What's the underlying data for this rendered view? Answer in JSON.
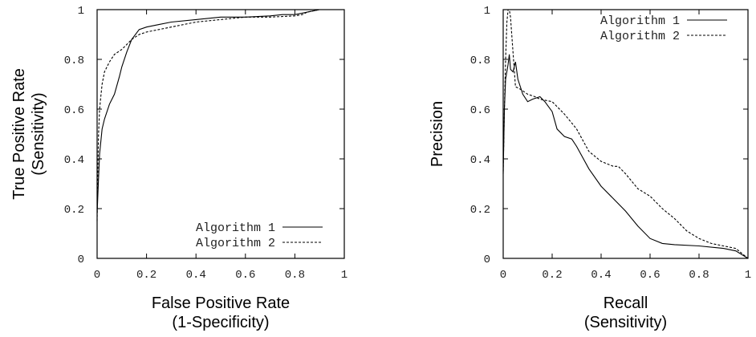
{
  "chart_data": [
    {
      "type": "line",
      "xlabel": [
        "False Positive Rate",
        "(1-Specificity)"
      ],
      "ylabel": [
        "True Positive Rate",
        "(Sensitivity)"
      ],
      "xlim": [
        0,
        1
      ],
      "ylim": [
        0,
        1
      ],
      "xticks": [
        "0",
        "0.2",
        "0.4",
        "0.6",
        "0.8",
        "1"
      ],
      "yticks": [
        "0",
        "0.2",
        "0.4",
        "0.6",
        "0.8",
        "1"
      ],
      "grid": false,
      "legend_position": "bottom-right",
      "series": [
        {
          "name": "Algorithm 1",
          "style": "solid",
          "x": [
            0,
            0.005,
            0.01,
            0.02,
            0.03,
            0.05,
            0.07,
            0.09,
            0.1,
            0.12,
            0.14,
            0.17,
            0.2,
            0.25,
            0.3,
            0.4,
            0.5,
            0.6,
            0.7,
            0.75,
            0.8,
            0.85,
            0.9,
            1.0
          ],
          "y": [
            0.18,
            0.3,
            0.42,
            0.52,
            0.56,
            0.62,
            0.66,
            0.73,
            0.77,
            0.83,
            0.88,
            0.92,
            0.93,
            0.94,
            0.95,
            0.96,
            0.97,
            0.97,
            0.975,
            0.98,
            0.98,
            0.99,
            1.0,
            1.0
          ]
        },
        {
          "name": "Algorithm 2",
          "style": "dashed",
          "x": [
            0,
            0.003,
            0.006,
            0.01,
            0.015,
            0.02,
            0.03,
            0.05,
            0.07,
            0.1,
            0.12,
            0.14,
            0.17,
            0.2,
            0.25,
            0.3,
            0.4,
            0.5,
            0.6,
            0.7,
            0.8,
            0.83,
            0.85,
            0.9,
            1.0
          ],
          "y": [
            0.15,
            0.35,
            0.5,
            0.6,
            0.65,
            0.7,
            0.75,
            0.79,
            0.82,
            0.84,
            0.86,
            0.88,
            0.9,
            0.91,
            0.92,
            0.93,
            0.95,
            0.96,
            0.97,
            0.97,
            0.975,
            0.98,
            0.99,
            1.0,
            1.0
          ]
        }
      ]
    },
    {
      "type": "line",
      "xlabel": [
        "Recall",
        "(Sensitivity)"
      ],
      "ylabel": [
        "Precision"
      ],
      "xlim": [
        0,
        1
      ],
      "ylim": [
        0,
        1
      ],
      "xticks": [
        "0",
        "0.2",
        "0.4",
        "0.6",
        "0.8",
        "1"
      ],
      "yticks": [
        "0",
        "0.2",
        "0.4",
        "0.6",
        "0.8",
        "1"
      ],
      "grid": false,
      "legend_position": "top-right",
      "series": [
        {
          "name": "Algorithm 1",
          "style": "solid",
          "x": [
            0,
            0.005,
            0.01,
            0.02,
            0.025,
            0.03,
            0.04,
            0.05,
            0.06,
            0.08,
            0.1,
            0.12,
            0.15,
            0.17,
            0.2,
            0.22,
            0.25,
            0.28,
            0.3,
            0.35,
            0.4,
            0.45,
            0.5,
            0.55,
            0.6,
            0.65,
            0.7,
            0.8,
            0.9,
            0.95,
            1.0
          ],
          "y": [
            0.34,
            0.6,
            0.72,
            0.78,
            0.82,
            0.76,
            0.75,
            0.79,
            0.72,
            0.66,
            0.63,
            0.64,
            0.65,
            0.63,
            0.59,
            0.52,
            0.49,
            0.48,
            0.45,
            0.36,
            0.29,
            0.24,
            0.19,
            0.13,
            0.08,
            0.06,
            0.055,
            0.05,
            0.04,
            0.03,
            0.0
          ]
        },
        {
          "name": "Algorithm 2",
          "style": "dashed",
          "x": [
            0,
            0.005,
            0.01,
            0.015,
            0.02,
            0.025,
            0.03,
            0.05,
            0.07,
            0.1,
            0.13,
            0.15,
            0.2,
            0.22,
            0.25,
            0.3,
            0.35,
            0.4,
            0.45,
            0.47,
            0.5,
            0.55,
            0.6,
            0.65,
            0.7,
            0.75,
            0.8,
            0.85,
            0.9,
            0.95,
            1.0
          ],
          "y": [
            0.35,
            0.6,
            0.8,
            0.95,
            1.0,
            1.0,
            0.97,
            0.69,
            0.68,
            0.66,
            0.65,
            0.64,
            0.63,
            0.61,
            0.58,
            0.52,
            0.43,
            0.39,
            0.37,
            0.37,
            0.34,
            0.28,
            0.25,
            0.2,
            0.16,
            0.11,
            0.08,
            0.06,
            0.05,
            0.04,
            0.0
          ]
        }
      ]
    }
  ]
}
